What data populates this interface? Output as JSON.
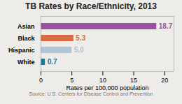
{
  "chart_data": {
    "type": "bar",
    "orientation": "horizontal",
    "title": "TB Rates by Race/Ethnicity, 2013",
    "categories": [
      "White",
      "Hispanic",
      "Black",
      "Asian"
    ],
    "values": [
      0.7,
      5.0,
      5.3,
      18.7
    ],
    "value_labels": [
      "0.7",
      "5.0",
      "5.3",
      "18.7"
    ],
    "data_labels": true,
    "colors": [
      "#1a7a9a",
      "#aec6d8",
      "#d96b46",
      "#9b50a0"
    ],
    "xlabel": "Rates per 100,000 population",
    "xlim": [
      0,
      21.5
    ],
    "xticks": [
      0,
      5,
      10,
      15,
      20
    ],
    "grid": false,
    "annotations": [
      "Source: U.S. Centers for Disease Control and Prevention"
    ]
  }
}
